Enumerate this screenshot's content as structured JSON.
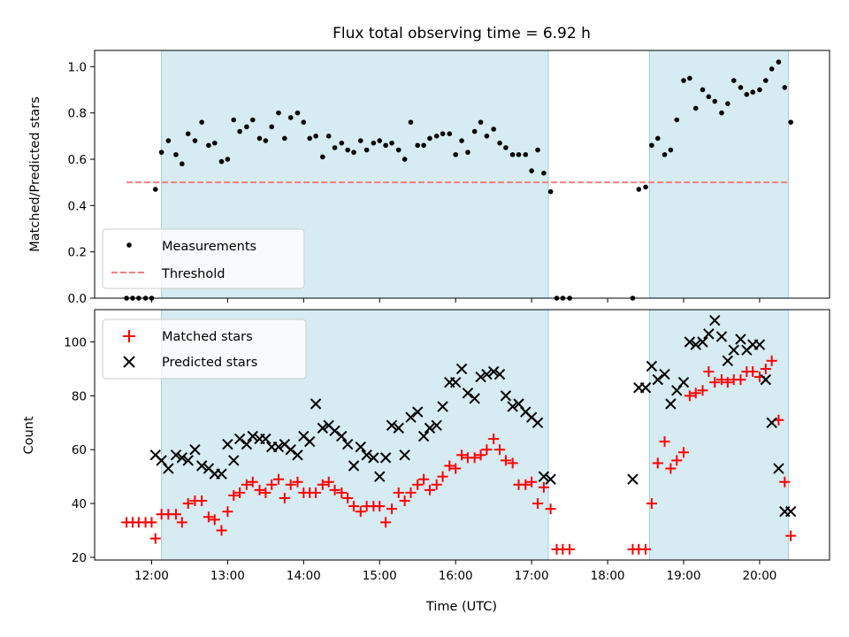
{
  "chart_data": [
    {
      "type": "scatter",
      "title": "Flux total observing time = 6.92 h",
      "xlabel": "",
      "ylabel": "Matched/Predicted stars",
      "xlim": [
        11.25,
        20.92
      ],
      "ylim": [
        0,
        1.07
      ],
      "yticks": [
        0,
        0.2,
        0.4,
        0.6,
        0.8,
        1.0
      ],
      "ytick_labels": [
        "0.0",
        "0.2",
        "0.4",
        "0.6",
        "0.8",
        "1.0"
      ],
      "shaded_intervals": [
        [
          12.13,
          17.22
        ],
        [
          18.55,
          20.38
        ]
      ],
      "legend_position": "lower-left",
      "series": [
        {
          "name": "Measurements",
          "marker": "dot",
          "color": "#000000",
          "x": [
            11.67,
            11.75,
            11.83,
            11.92,
            12.0,
            12.05,
            12.13,
            12.22,
            12.32,
            12.4,
            12.48,
            12.57,
            12.66,
            12.75,
            12.83,
            12.92,
            13.0,
            13.08,
            13.16,
            13.25,
            13.33,
            13.42,
            13.5,
            13.58,
            13.67,
            13.75,
            13.83,
            13.92,
            14.0,
            14.08,
            14.16,
            14.25,
            14.33,
            14.41,
            14.5,
            14.58,
            14.66,
            14.75,
            14.83,
            14.92,
            15.0,
            15.08,
            15.16,
            15.25,
            15.33,
            15.41,
            15.5,
            15.58,
            15.66,
            15.75,
            15.83,
            15.92,
            16.0,
            16.08,
            16.16,
            16.25,
            16.33,
            16.41,
            16.5,
            16.58,
            16.66,
            16.75,
            16.83,
            16.92,
            17.0,
            17.08,
            17.16,
            17.25,
            17.33,
            17.41,
            17.5,
            18.33,
            18.41,
            18.5,
            18.58,
            18.66,
            18.75,
            18.83,
            18.91,
            19.0,
            19.08,
            19.16,
            19.25,
            19.33,
            19.41,
            19.5,
            19.58,
            19.66,
            19.75,
            19.83,
            19.91,
            20.0,
            20.08,
            20.16,
            20.25,
            20.33,
            20.41
          ],
          "y": [
            0.0,
            0.0,
            0.0,
            0.0,
            0.0,
            0.47,
            0.63,
            0.68,
            0.62,
            0.58,
            0.71,
            0.68,
            0.76,
            0.66,
            0.67,
            0.59,
            0.6,
            0.77,
            0.72,
            0.74,
            0.77,
            0.69,
            0.68,
            0.74,
            0.8,
            0.69,
            0.78,
            0.8,
            0.76,
            0.69,
            0.7,
            0.61,
            0.7,
            0.65,
            0.67,
            0.64,
            0.63,
            0.68,
            0.64,
            0.67,
            0.68,
            0.66,
            0.67,
            0.64,
            0.6,
            0.76,
            0.66,
            0.66,
            0.69,
            0.7,
            0.71,
            0.71,
            0.62,
            0.68,
            0.63,
            0.72,
            0.76,
            0.7,
            0.73,
            0.67,
            0.65,
            0.62,
            0.62,
            0.62,
            0.55,
            0.64,
            0.54,
            0.46,
            0.0,
            0.0,
            0.0,
            0.0,
            0.47,
            0.48,
            0.66,
            0.69,
            0.62,
            0.64,
            0.77,
            0.94,
            0.95,
            0.82,
            0.9,
            0.87,
            0.85,
            0.8,
            0.84,
            0.94,
            0.91,
            0.88,
            0.89,
            0.9,
            0.94,
            0.99,
            1.02,
            0.91,
            0.76
          ]
        },
        {
          "name": "Threshold",
          "marker": "dashed-line",
          "color": "#f08080",
          "x": [
            11.67,
            20.38
          ],
          "y": [
            0.5,
            0.5
          ]
        }
      ]
    },
    {
      "type": "scatter",
      "title": "",
      "xlabel": "Time (UTC)",
      "ylabel": "Count",
      "xlim": [
        11.25,
        20.92
      ],
      "ylim": [
        19,
        112
      ],
      "yticks": [
        20,
        40,
        60,
        80,
        100
      ],
      "ytick_labels": [
        "20",
        "40",
        "60",
        "80",
        "100"
      ],
      "xticks": [
        12,
        13,
        14,
        15,
        16,
        17,
        18,
        19,
        20
      ],
      "xtick_labels": [
        "12:00",
        "13:00",
        "14:00",
        "15:00",
        "16:00",
        "17:00",
        "18:00",
        "19:00",
        "20:00"
      ],
      "shaded_intervals": [
        [
          12.13,
          17.22
        ],
        [
          18.55,
          20.38
        ]
      ],
      "legend_position": "upper-left",
      "series": [
        {
          "name": "Matched stars",
          "marker": "plus",
          "color": "#ff0000",
          "x": [
            11.67,
            11.75,
            11.83,
            11.92,
            12.0,
            12.05,
            12.13,
            12.22,
            12.32,
            12.4,
            12.48,
            12.57,
            12.66,
            12.75,
            12.83,
            12.92,
            13.0,
            13.08,
            13.16,
            13.25,
            13.33,
            13.42,
            13.5,
            13.58,
            13.67,
            13.75,
            13.83,
            13.92,
            14.0,
            14.08,
            14.16,
            14.25,
            14.33,
            14.41,
            14.5,
            14.58,
            14.66,
            14.75,
            14.83,
            14.92,
            15.0,
            15.08,
            15.16,
            15.25,
            15.33,
            15.41,
            15.5,
            15.58,
            15.66,
            15.75,
            15.83,
            15.92,
            16.0,
            16.08,
            16.16,
            16.25,
            16.33,
            16.41,
            16.5,
            16.58,
            16.66,
            16.75,
            16.83,
            16.92,
            17.0,
            17.08,
            17.16,
            17.25,
            17.33,
            17.41,
            17.5,
            18.33,
            18.41,
            18.5,
            18.58,
            18.66,
            18.75,
            18.83,
            18.91,
            19.0,
            19.08,
            19.16,
            19.25,
            19.33,
            19.41,
            19.5,
            19.58,
            19.66,
            19.75,
            19.83,
            19.91,
            20.0,
            20.08,
            20.16,
            20.25,
            20.33,
            20.41
          ],
          "y": [
            33,
            33,
            33,
            33,
            33,
            27,
            36,
            36,
            36,
            33,
            40,
            41,
            41,
            35,
            34,
            30,
            37,
            43,
            44,
            47,
            48,
            45,
            44,
            47,
            49,
            42,
            47,
            48,
            44,
            44,
            44,
            47,
            48,
            45,
            44,
            42,
            39,
            37,
            39,
            39,
            39,
            33,
            38,
            44,
            41,
            44,
            47,
            49,
            45,
            47,
            50,
            54,
            53,
            58,
            57,
            57,
            58,
            60,
            64,
            60,
            56,
            55,
            47,
            47,
            48,
            40,
            46,
            38,
            23,
            23,
            23,
            23,
            23,
            23,
            40,
            55,
            63,
            53,
            56,
            59,
            80,
            81,
            82,
            89,
            85,
            86,
            85,
            86,
            86,
            89,
            89,
            87,
            90,
            93,
            71,
            48,
            28
          ]
        },
        {
          "name": "Predicted stars",
          "marker": "x",
          "color": "#000000",
          "x": [
            12.05,
            12.13,
            12.22,
            12.32,
            12.4,
            12.48,
            12.57,
            12.66,
            12.75,
            12.83,
            12.92,
            13.0,
            13.08,
            13.16,
            13.25,
            13.33,
            13.42,
            13.5,
            13.58,
            13.67,
            13.75,
            13.83,
            13.92,
            14.0,
            14.08,
            14.16,
            14.25,
            14.33,
            14.41,
            14.5,
            14.58,
            14.66,
            14.75,
            14.83,
            14.92,
            15.0,
            15.08,
            15.16,
            15.25,
            15.33,
            15.41,
            15.5,
            15.58,
            15.66,
            15.75,
            15.83,
            15.92,
            16.0,
            16.08,
            16.16,
            16.25,
            16.33,
            16.41,
            16.5,
            16.58,
            16.66,
            16.75,
            16.83,
            16.92,
            17.0,
            17.08,
            17.16,
            17.25,
            18.33,
            18.41,
            18.5,
            18.58,
            18.66,
            18.75,
            18.83,
            18.91,
            19.0,
            19.08,
            19.16,
            19.25,
            19.33,
            19.41,
            19.5,
            19.58,
            19.66,
            19.75,
            19.83,
            19.91,
            20.0,
            20.08,
            20.16,
            20.25,
            20.33,
            20.41
          ],
          "y": [
            58,
            56,
            53,
            58,
            57,
            56,
            60,
            54,
            53,
            51,
            51,
            62,
            56,
            64,
            62,
            65,
            64,
            64,
            61,
            61,
            62,
            60,
            58,
            65,
            63,
            77,
            68,
            69,
            67,
            65,
            62,
            54,
            61,
            58,
            57,
            50,
            57,
            69,
            68,
            58,
            72,
            74,
            65,
            68,
            69,
            76,
            85,
            85,
            90,
            81,
            79,
            87,
            88,
            89,
            88,
            80,
            76,
            77,
            74,
            72,
            70,
            50,
            49,
            49,
            83,
            83,
            91,
            86,
            88,
            77,
            82,
            85,
            100,
            99,
            100,
            103,
            108,
            102,
            93,
            97,
            101,
            97,
            99,
            99,
            86,
            70,
            53,
            37,
            37
          ]
        }
      ]
    }
  ]
}
